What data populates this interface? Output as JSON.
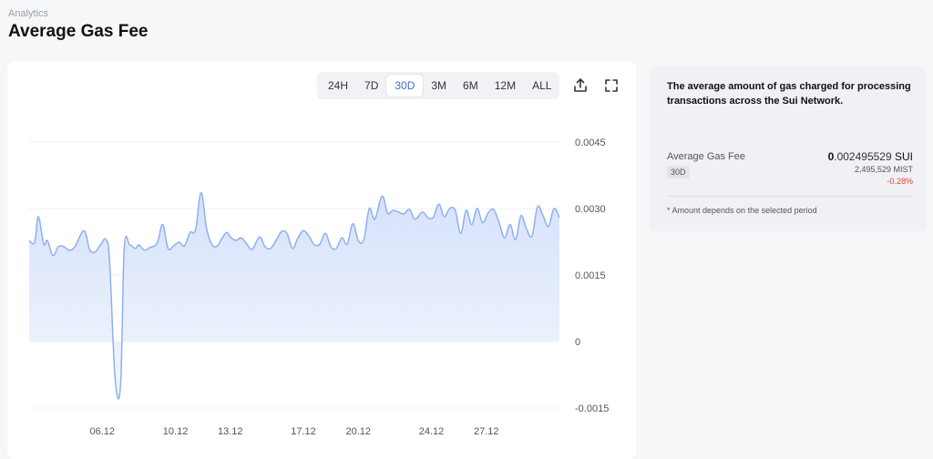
{
  "header": {
    "breadcrumb": "Analytics",
    "title": "Average Gas Fee"
  },
  "range_tabs": [
    "24H",
    "7D",
    "30D",
    "3M",
    "6M",
    "12M",
    "ALL"
  ],
  "active_range": "30D",
  "toolbar": {
    "share_icon": "share-icon",
    "fullscreen_icon": "fullscreen-icon"
  },
  "info": {
    "description": "The average amount of gas charged for processing transactions across the Sui Network.",
    "stat_label": "Average Gas Fee",
    "period_badge": "30D",
    "value_int": "0",
    "value_frac": ".002495529",
    "value_unit": " SUI",
    "value_mist": "2,495,529 MIST",
    "change": "-0.28%",
    "note": "* Amount depends on the selected period"
  },
  "colors": {
    "line": "#8fb0ee",
    "fill_top": "#d6e2fb",
    "fill_bottom": "#f3f6fd",
    "accent": "#3b6fd8",
    "negative": "#e0463a"
  },
  "chart_data": {
    "type": "area",
    "title": "",
    "xlabel": "",
    "ylabel": "",
    "ylim": [
      -0.0015,
      0.0045
    ],
    "y_ticks": [
      "0.0045",
      "0.0030",
      "0.0015",
      "0",
      "-0.0015"
    ],
    "y_tick_values": [
      0.0045,
      0.003,
      0.0015,
      0,
      -0.0015
    ],
    "x_tick_labels": [
      "06.12",
      "10.12",
      "13.12",
      "17.12",
      "20.12",
      "24.12",
      "27.12"
    ],
    "x_tick_dates": [
      6,
      10,
      13,
      17,
      20,
      24,
      27
    ],
    "x_range": [
      2,
      31
    ],
    "grid": true,
    "series": [
      {
        "x": [
          2.0,
          2.3,
          2.5,
          2.8,
          3.0,
          3.3,
          3.6,
          3.9,
          4.2,
          4.5,
          5.0,
          5.3,
          5.6,
          5.9,
          6.2,
          6.4,
          6.7,
          7.0,
          7.2,
          7.5,
          7.8,
          8.0,
          8.3,
          8.6,
          9.0,
          9.3,
          9.6,
          9.9,
          10.2,
          10.5,
          10.8,
          11.1,
          11.4,
          11.7,
          12.0,
          12.3,
          12.5,
          12.8,
          13.0,
          13.3,
          13.6,
          13.9,
          14.2,
          14.6,
          14.9,
          15.2,
          15.5,
          15.8,
          16.1,
          16.4,
          16.7,
          17.0,
          17.3,
          17.6,
          17.9,
          18.2,
          18.5,
          18.8,
          19.1,
          19.4,
          19.7,
          20.0,
          20.3,
          20.6,
          20.9,
          21.3,
          21.6,
          21.9,
          22.2,
          22.5,
          22.8,
          23.1,
          23.5,
          23.8,
          24.1,
          24.4,
          24.7,
          25.0,
          25.3,
          25.6,
          25.9,
          26.2,
          26.5,
          26.8,
          27.1,
          27.4,
          27.7,
          28.0,
          28.3,
          28.6,
          28.9,
          29.2,
          29.5,
          29.8,
          30.1,
          30.4,
          30.7,
          31.0
        ],
        "y": [
          0.00228,
          0.00224,
          0.00282,
          0.0022,
          0.00228,
          0.00194,
          0.00214,
          0.00214,
          0.00206,
          0.00214,
          0.0025,
          0.00208,
          0.00202,
          0.00218,
          0.0023,
          0.0018,
          -0.00082,
          -0.00098,
          0.0021,
          0.00218,
          0.0021,
          0.00218,
          0.00206,
          0.00212,
          0.00222,
          0.00264,
          0.0021,
          0.00216,
          0.00224,
          0.00216,
          0.00246,
          0.00252,
          0.00336,
          0.00256,
          0.00218,
          0.00216,
          0.0023,
          0.00246,
          0.00236,
          0.00228,
          0.00234,
          0.0022,
          0.00208,
          0.00236,
          0.00214,
          0.0021,
          0.00228,
          0.00248,
          0.00244,
          0.0021,
          0.00234,
          0.0025,
          0.00238,
          0.00218,
          0.0022,
          0.00244,
          0.00214,
          0.0021,
          0.00234,
          0.0022,
          0.00266,
          0.00228,
          0.0023,
          0.003,
          0.00276,
          0.00328,
          0.0029,
          0.00296,
          0.00292,
          0.00288,
          0.00298,
          0.00276,
          0.00292,
          0.0028,
          0.0028,
          0.0031,
          0.00282,
          0.003,
          0.00296,
          0.00244,
          0.00296,
          0.00264,
          0.003,
          0.00268,
          0.0029,
          0.00298,
          0.00268,
          0.00234,
          0.00264,
          0.0023,
          0.00284,
          0.00254,
          0.00238,
          0.00304,
          0.00284,
          0.0026,
          0.003,
          0.0028
        ]
      }
    ]
  }
}
